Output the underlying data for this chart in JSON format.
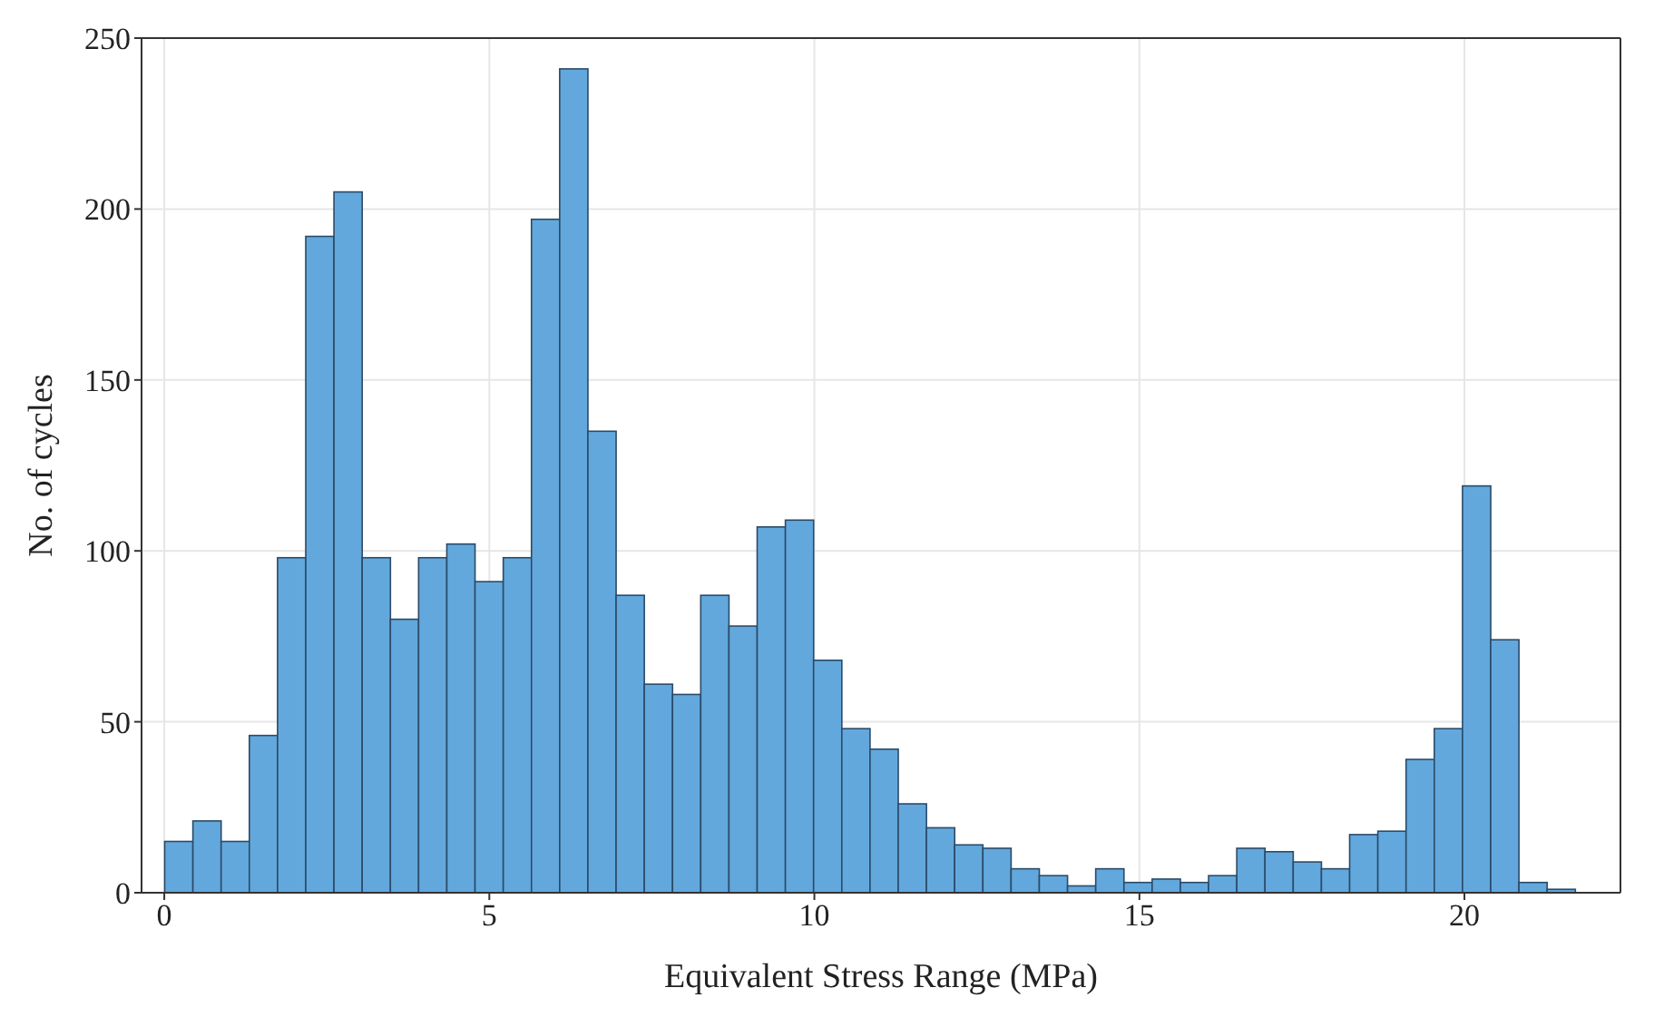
{
  "chart_data": {
    "type": "histogram",
    "xlabel": "Equivalent Stress Range (MPa)",
    "ylabel": "No. of cycles",
    "color": "#62a8dc",
    "bins": [
      0,
      0.434,
      0.868,
      1.302,
      1.736,
      2.17,
      2.604,
      3.038,
      3.472,
      3.906,
      4.34,
      4.774,
      5.208,
      5.642,
      6.076,
      6.51,
      6.944,
      7.378,
      7.812,
      8.246,
      8.68,
      9.114,
      9.548,
      9.982,
      10.416,
      10.85,
      11.284,
      11.718,
      12.152,
      12.586,
      13.02,
      13.454,
      13.888,
      14.322,
      14.756,
      15.19,
      15.624,
      16.058,
      16.492,
      16.926,
      17.36,
      17.794,
      18.228,
      18.662,
      19.096,
      19.53,
      19.964,
      20.398,
      20.832,
      21.266,
      21.7
    ],
    "values": [
      15,
      21,
      15,
      46,
      98,
      192,
      205,
      98,
      80,
      98,
      102,
      91,
      98,
      197,
      241,
      135,
      87,
      61,
      58,
      87,
      78,
      107,
      109,
      68,
      48,
      42,
      26,
      19,
      14,
      13,
      7,
      5,
      2,
      7,
      3,
      4,
      3,
      5,
      13,
      12,
      9,
      7,
      17,
      18,
      39,
      48,
      119,
      74,
      3,
      1
    ],
    "xlim": [
      -0.35,
      22.4
    ],
    "xticks": [
      0,
      5,
      10,
      15,
      20
    ],
    "ylim": [
      0,
      250
    ],
    "yticks": [
      0,
      50,
      100,
      150,
      200,
      250
    ],
    "grid": true
  }
}
